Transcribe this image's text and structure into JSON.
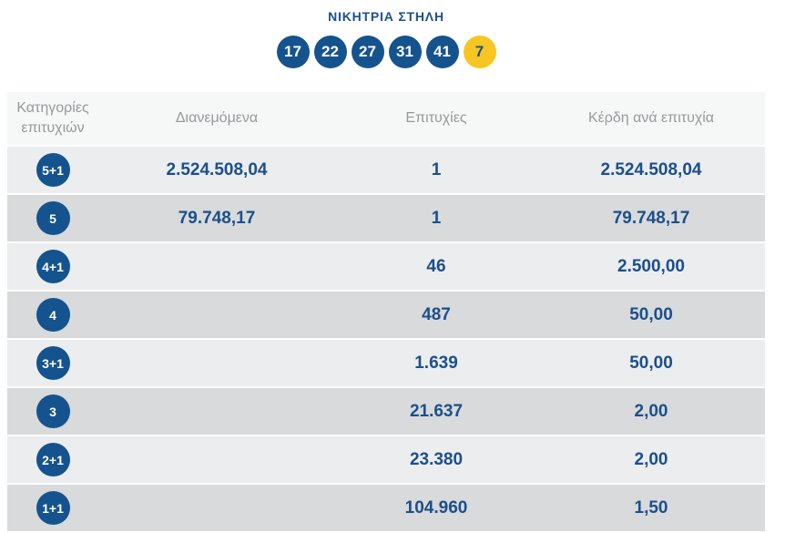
{
  "title": "ΝΙΚΗΤΡΙΑ ΣΤΗΛΗ",
  "winning_numbers": {
    "main": [
      "17",
      "22",
      "27",
      "31",
      "41"
    ],
    "joker": "7"
  },
  "colors": {
    "ball_blue": "#15538e",
    "joker_yellow": "#f8c622",
    "text_blue": "#1b4f8c",
    "header_gray": "#97999b",
    "row_light": "#ebedee",
    "row_dark": "#d8dadb",
    "header_bg": "#f6f7f7"
  },
  "table": {
    "headers": [
      "Κατηγορίες επιτυχιών",
      "Διανεμόμενα",
      "Επιτυχίες",
      "Κέρδη ανά επιτυχία"
    ],
    "rows": [
      {
        "category": "5+1",
        "distributed": "2.524.508,04",
        "wins": "1",
        "prize": "2.524.508,04"
      },
      {
        "category": "5",
        "distributed": "79.748,17",
        "wins": "1",
        "prize": "79.748,17"
      },
      {
        "category": "4+1",
        "distributed": "",
        "wins": "46",
        "prize": "2.500,00"
      },
      {
        "category": "4",
        "distributed": "",
        "wins": "487",
        "prize": "50,00"
      },
      {
        "category": "3+1",
        "distributed": "",
        "wins": "1.639",
        "prize": "50,00"
      },
      {
        "category": "3",
        "distributed": "",
        "wins": "21.637",
        "prize": "2,00"
      },
      {
        "category": "2+1",
        "distributed": "",
        "wins": "23.380",
        "prize": "2,00"
      },
      {
        "category": "1+1",
        "distributed": "",
        "wins": "104.960",
        "prize": "1,50"
      }
    ]
  }
}
